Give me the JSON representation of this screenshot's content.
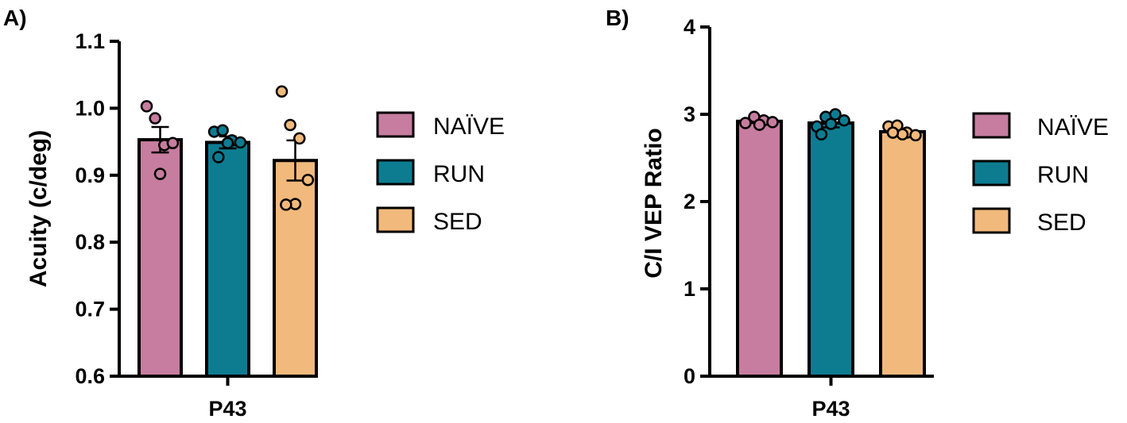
{
  "colors": {
    "naive": "#c67d9f",
    "run": "#0d7c91",
    "sed": "#f2b97c",
    "outline": "#000000"
  },
  "chart_data": [
    {
      "type": "bar",
      "panel_label": "A)",
      "title": "",
      "xlabel": "",
      "ylabel": "Acuity (c/deg)",
      "ylim": [
        0.6,
        1.1
      ],
      "yticks": [
        0.6,
        0.7,
        0.8,
        0.9,
        1.0,
        1.1
      ],
      "ytick_labels": [
        "0.6",
        "0.7",
        "0.8",
        "0.9",
        "1.0",
        "1.1"
      ],
      "categories": [
        "P43"
      ],
      "legend_position": "right",
      "grid": false,
      "series": [
        {
          "name": "NAÏVE",
          "color": "#c67d9f",
          "values": [
            0.953
          ],
          "sem": [
            0.019
          ],
          "points": [
            1.003,
            0.985,
            0.945,
            0.948,
            0.902
          ]
        },
        {
          "name": "RUN",
          "color": "#0d7c91",
          "values": [
            0.949
          ],
          "sem": [
            0.009
          ],
          "points": [
            0.965,
            0.967,
            0.952,
            0.949,
            0.948,
            0.927
          ]
        },
        {
          "name": "SED",
          "color": "#f2b97c",
          "values": [
            0.922
          ],
          "sem": [
            0.03
          ],
          "points": [
            1.025,
            0.975,
            0.955,
            0.893,
            0.857,
            0.856
          ]
        }
      ]
    },
    {
      "type": "bar",
      "panel_label": "B)",
      "title": "",
      "xlabel": "",
      "ylabel": "C/I VEP Ratio",
      "ylim": [
        0,
        4
      ],
      "yticks": [
        0,
        1,
        2,
        3,
        4
      ],
      "ytick_labels": [
        "0",
        "1",
        "2",
        "3",
        "4"
      ],
      "categories": [
        "P43"
      ],
      "legend_position": "right",
      "grid": false,
      "series": [
        {
          "name": "NAÏVE",
          "color": "#c67d9f",
          "values": [
            2.92
          ],
          "sem": [
            0.02
          ],
          "points": [
            2.9,
            2.97,
            2.93,
            2.91,
            2.88
          ]
        },
        {
          "name": "RUN",
          "color": "#0d7c91",
          "values": [
            2.9
          ],
          "sem": [
            0.05
          ],
          "points": [
            2.86,
            2.97,
            3.0,
            2.93,
            2.89,
            2.77
          ]
        },
        {
          "name": "SED",
          "color": "#f2b97c",
          "values": [
            2.8
          ],
          "sem": [
            0.03
          ],
          "points": [
            2.86,
            2.87,
            2.79,
            2.76,
            2.77,
            2.79
          ]
        }
      ]
    }
  ]
}
